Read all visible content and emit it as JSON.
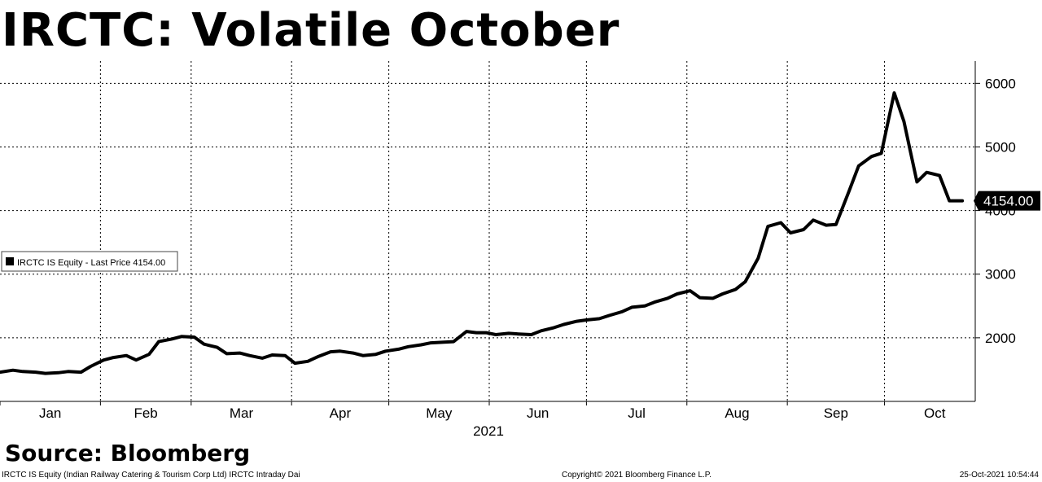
{
  "title": "IRCTC: Volatile October",
  "source": "Source: Bloomberg",
  "footer": {
    "left": "IRCTC IS Equity (Indian Railway Catering & Tourism Corp Ltd) IRCTC Intraday  Dai",
    "center": "Copyright© 2021 Bloomberg Finance L.P.",
    "right": "25-Oct-2021 10:54:44"
  },
  "chart_data": {
    "type": "line",
    "title": "IRCTC: Volatile October",
    "xlabel": "2021",
    "ylabel": "",
    "x_ticks": [
      "Jan",
      "Feb",
      "Mar",
      "Apr",
      "May",
      "Jun",
      "Jul",
      "Aug",
      "Sep",
      "Oct"
    ],
    "y_ticks": [
      2000,
      3000,
      4000,
      5000,
      6000
    ],
    "ylim": [
      1000,
      6350
    ],
    "grid": true,
    "legend_position": "left",
    "last_price_label": "4154.00",
    "series": [
      {
        "name": "IRCTC IS Equity - Last Price 4154.00",
        "color": "#000000",
        "x": [
          "2021-01-01",
          "2021-01-05",
          "2021-01-08",
          "2021-01-12",
          "2021-01-15",
          "2021-01-19",
          "2021-01-22",
          "2021-01-26",
          "2021-01-29",
          "2021-02-02",
          "2021-02-05",
          "2021-02-09",
          "2021-02-12",
          "2021-02-16",
          "2021-02-19",
          "2021-02-23",
          "2021-02-26",
          "2021-03-02",
          "2021-03-05",
          "2021-03-09",
          "2021-03-12",
          "2021-03-16",
          "2021-03-19",
          "2021-03-23",
          "2021-03-26",
          "2021-03-30",
          "2021-04-02",
          "2021-04-06",
          "2021-04-09",
          "2021-04-13",
          "2021-04-16",
          "2021-04-20",
          "2021-04-23",
          "2021-04-27",
          "2021-04-30",
          "2021-05-04",
          "2021-05-07",
          "2021-05-11",
          "2021-05-14",
          "2021-05-18",
          "2021-05-21",
          "2021-05-25",
          "2021-05-28",
          "2021-05-31",
          "2021-06-03",
          "2021-06-07",
          "2021-06-10",
          "2021-06-14",
          "2021-06-17",
          "2021-06-21",
          "2021-06-24",
          "2021-06-28",
          "2021-07-01",
          "2021-07-05",
          "2021-07-08",
          "2021-07-12",
          "2021-07-15",
          "2021-07-19",
          "2021-07-22",
          "2021-07-26",
          "2021-07-29",
          "2021-08-02",
          "2021-08-05",
          "2021-08-09",
          "2021-08-12",
          "2021-08-16",
          "2021-08-19",
          "2021-08-23",
          "2021-08-26",
          "2021-08-30",
          "2021-09-02",
          "2021-09-06",
          "2021-09-09",
          "2021-09-13",
          "2021-09-16",
          "2021-09-20",
          "2021-09-23",
          "2021-09-27",
          "2021-09-30",
          "2021-10-04",
          "2021-10-07",
          "2021-10-11",
          "2021-10-14",
          "2021-10-18",
          "2021-10-21",
          "2021-10-25"
        ],
        "values": [
          1460,
          1490,
          1470,
          1460,
          1440,
          1450,
          1470,
          1460,
          1550,
          1650,
          1690,
          1720,
          1650,
          1740,
          1940,
          1980,
          2020,
          2010,
          1900,
          1850,
          1750,
          1760,
          1720,
          1680,
          1730,
          1720,
          1600,
          1630,
          1700,
          1780,
          1790,
          1760,
          1720,
          1740,
          1790,
          1820,
          1860,
          1890,
          1920,
          1930,
          1940,
          2100,
          2080,
          2080,
          2050,
          2070,
          2060,
          2050,
          2110,
          2160,
          2210,
          2260,
          2280,
          2300,
          2350,
          2410,
          2480,
          2500,
          2560,
          2620,
          2690,
          2740,
          2630,
          2620,
          2690,
          2760,
          2880,
          3250,
          3750,
          3810,
          3650,
          3700,
          3850,
          3770,
          3780,
          4300,
          4700,
          4850,
          4900,
          5850,
          5400,
          4450,
          4600,
          4550,
          4154,
          4154
        ]
      }
    ]
  }
}
